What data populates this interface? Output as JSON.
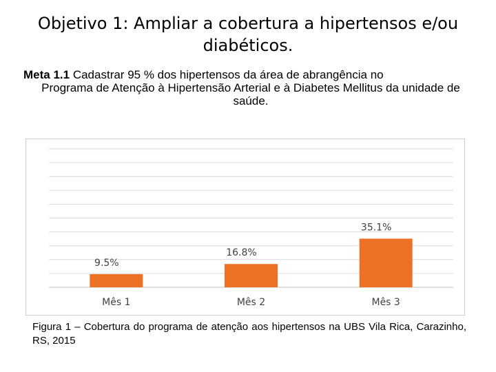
{
  "title": "Objetivo 1: Ampliar a cobertura a hipertensos e/ou diabéticos.",
  "meta": {
    "label": "Meta 1.1",
    "line1": "Cadastrar 95 % dos hipertensos da área de abrangência no",
    "line2": "Programa de Atenção à Hipertensão Arterial e à Diabetes Mellitus da unidade de saúde."
  },
  "caption": "Figura 1 – Cobertura do programa de atenção aos hipertensos na UBS Vila Rica, Carazinho, RS, 2015",
  "colors": {
    "bar": "#ED7125",
    "grid": "#D9D9D9",
    "axis": "#BFBFBF"
  },
  "chart_data": {
    "type": "bar",
    "title": "",
    "xlabel": "",
    "ylabel": "",
    "categories": [
      "Mês 1",
      "Mês 2",
      "Mês 3"
    ],
    "values": [
      9.5,
      16.8,
      35.1
    ],
    "data_labels": [
      "9.5%",
      "16.8%",
      "35.1%"
    ],
    "ylim": [
      0,
      100
    ],
    "grid": true
  }
}
